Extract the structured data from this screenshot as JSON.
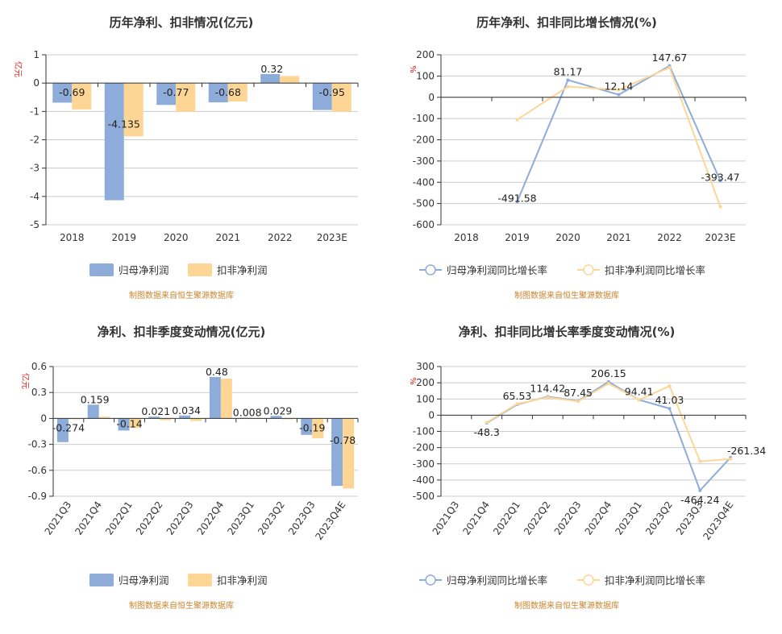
{
  "colors": {
    "blue": "#8eacd9",
    "orange": "#fdd695",
    "axis": "#333333",
    "grid": "#cccccc",
    "source": "#c8842d",
    "unit": "#e0201b"
  },
  "chart_data": [
    {
      "type": "bar",
      "title": "历年净利、扣非情况(亿元)",
      "ylabel": "亿元",
      "ylim": [
        -5,
        1
      ],
      "yticks": [
        "1",
        "0",
        "-1",
        "-2",
        "-3",
        "-4",
        "-5"
      ],
      "ytick_values": [
        1,
        0,
        -1,
        -2,
        -3,
        -4,
        -5
      ],
      "categories": [
        "2018",
        "2019",
        "2020",
        "2021",
        "2022",
        "2023E"
      ],
      "series": [
        {
          "name": "归母净利润",
          "values": [
            -0.69,
            -4.135,
            -0.77,
            -0.68,
            0.32,
            -0.95
          ],
          "labels": [
            "-0.69",
            "-4.135",
            "-0.77",
            "-0.68",
            "0.32",
            "-0.95"
          ]
        },
        {
          "name": "扣非净利润",
          "values": [
            -0.93,
            -1.88,
            -1.01,
            -0.65,
            0.25,
            -1.01
          ]
        }
      ],
      "source": "制图数据来自恒生聚源数据库"
    },
    {
      "type": "line",
      "title": "历年净利、扣非同比增长情况(%)",
      "ylabel": "%",
      "ylim": [
        -600,
        200
      ],
      "yticks": [
        "200",
        "100",
        "0",
        "-100",
        "-200",
        "-300",
        "-400",
        "-500",
        "-600"
      ],
      "ytick_values": [
        200,
        100,
        0,
        -100,
        -200,
        -300,
        -400,
        -500,
        -600
      ],
      "categories": [
        "2018",
        "2019",
        "2020",
        "2021",
        "2022",
        "2023E"
      ],
      "series": [
        {
          "name": "归母净利润同比增长率",
          "values": [
            null,
            -491.58,
            81.17,
            12.14,
            147.67,
            -393.47
          ],
          "labels": [
            "",
            "-491.58",
            "81.17",
            "12.14",
            "147.67",
            "-393.47"
          ]
        },
        {
          "name": "扣非净利润同比增长率",
          "values": [
            null,
            -105,
            50,
            35,
            140,
            -515
          ]
        }
      ],
      "source": "制图数据来自恒生聚源数据库"
    },
    {
      "type": "bar",
      "title": "净利、扣非季度变动情况(亿元)",
      "ylabel": "亿元",
      "ylim": [
        -0.9,
        0.6
      ],
      "yticks": [
        "0.6",
        "0.3",
        "0",
        "-0.3",
        "-0.6",
        "-0.9"
      ],
      "ytick_values": [
        0.6,
        0.3,
        0,
        -0.3,
        -0.6,
        -0.9
      ],
      "categories": [
        "2021Q3",
        "2021Q4",
        "2022Q1",
        "2022Q2",
        "2022Q3",
        "2022Q4",
        "2023Q1",
        "2023Q2",
        "2023Q3",
        "2023Q4E"
      ],
      "series": [
        {
          "name": "归母净利润",
          "values": [
            -0.274,
            0.159,
            -0.14,
            0.021,
            0.034,
            0.48,
            0.008,
            0.029,
            -0.19,
            -0.78
          ],
          "labels": [
            "-0.274",
            "0.159",
            "-0.14",
            "0.021",
            "0.034",
            "0.48",
            "0.008",
            "0.029",
            "-0.19",
            "-0.78"
          ]
        },
        {
          "name": "扣非净利润",
          "values": [
            -0.01,
            0.02,
            -0.11,
            -0.02,
            -0.03,
            0.46,
            0.003,
            -0.01,
            -0.23,
            -0.81
          ]
        }
      ],
      "source": "制图数据来自恒生聚源数据库"
    },
    {
      "type": "line",
      "title": "净利、扣非同比增长率季度变动情况(%)",
      "ylabel": "%",
      "ylim": [
        -500,
        300
      ],
      "yticks": [
        "300",
        "200",
        "100",
        "0",
        "-100",
        "-200",
        "-300",
        "-400",
        "-500"
      ],
      "ytick_values": [
        300,
        200,
        100,
        0,
        -100,
        -200,
        -300,
        -400,
        -500
      ],
      "categories": [
        "2021Q3",
        "2021Q4",
        "2022Q1",
        "2022Q2",
        "2022Q3",
        "2022Q4",
        "2023Q1",
        "2023Q2",
        "2023Q3",
        "2023Q4E"
      ],
      "series": [
        {
          "name": "归母净利润同比增长率",
          "values": [
            null,
            -48.3,
            65.53,
            114.42,
            87.45,
            206.15,
            94.41,
            41.03,
            -464.24,
            -261.34
          ],
          "labels": [
            "",
            "-48.3",
            "65.53",
            "114.42",
            "87.45",
            "206.15",
            "94.41",
            "41.03",
            "-464.24",
            "-261.34"
          ]
        },
        {
          "name": "扣非净利润同比增长率",
          "values": [
            null,
            -45,
            70,
            110,
            85,
            195,
            95,
            180,
            -285,
            -270
          ]
        }
      ],
      "source": "制图数据来自恒生聚源数据库"
    }
  ]
}
